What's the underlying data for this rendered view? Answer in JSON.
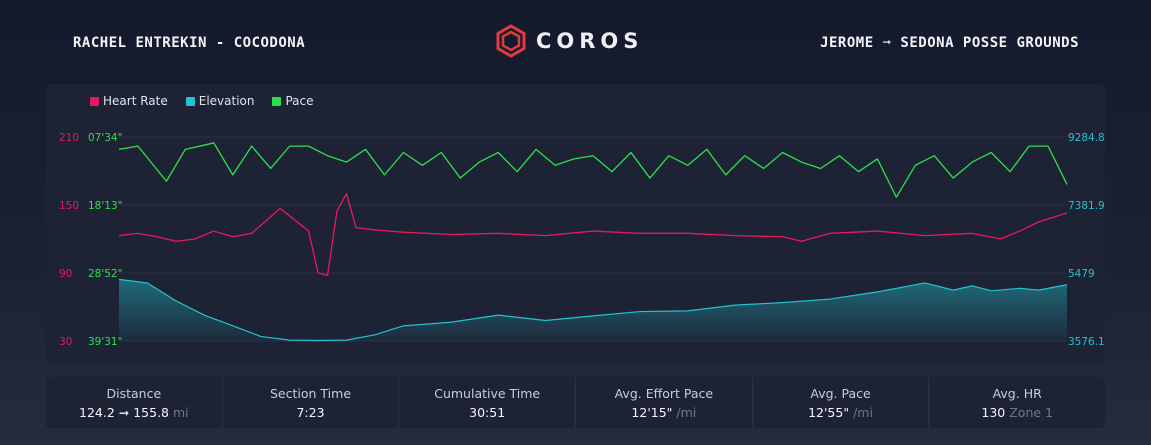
{
  "header": {
    "left_title": "RACHEL ENTREKIN - COCODONA",
    "logo_text": "COROS",
    "right_title": "JEROME ➞ SEDONA POSSE GROUNDS"
  },
  "colors": {
    "heart_rate": "#e8195a",
    "elevation": "#22c3cf",
    "pace": "#2ce04a"
  },
  "chart_data": {
    "type": "line",
    "legend": [
      "Heart Rate",
      "Elevation",
      "Pace"
    ],
    "legend_placement": "top-left",
    "y_left_hr_ticks": [
      "210",
      "150",
      "90",
      "30"
    ],
    "y_left_pace_ticks": [
      "07'34\"",
      "18'13\"",
      "28'52\"",
      "39'31\""
    ],
    "y_right_elevation_ticks": [
      "9284.8",
      "7381.9",
      "5479",
      "3576.1"
    ],
    "hr_range": [
      30,
      210
    ],
    "elevation_range": [
      3576.1,
      9284.8
    ],
    "pace_range_min_per_mi": [
      7.57,
      39.52
    ],
    "x_range": [
      0,
      1
    ],
    "series": [
      {
        "name": "Heart Rate",
        "x": [
          0,
          0.02,
          0.04,
          0.06,
          0.08,
          0.1,
          0.12,
          0.14,
          0.17,
          0.2,
          0.21,
          0.22,
          0.23,
          0.24,
          0.25,
          0.27,
          0.3,
          0.35,
          0.4,
          0.45,
          0.5,
          0.55,
          0.6,
          0.65,
          0.7,
          0.72,
          0.75,
          0.8,
          0.85,
          0.9,
          0.93,
          0.95,
          0.97,
          1
        ],
        "values": [
          123,
          125,
          122,
          118,
          120,
          127,
          122,
          125,
          147,
          127,
          90,
          88,
          145,
          160,
          130,
          128,
          126,
          124,
          125,
          123,
          127,
          125,
          125,
          123,
          122,
          118,
          125,
          127,
          123,
          125,
          120,
          127,
          135,
          143
        ]
      },
      {
        "name": "Elevation",
        "x": [
          0,
          0.03,
          0.06,
          0.09,
          0.12,
          0.15,
          0.18,
          0.21,
          0.24,
          0.27,
          0.3,
          0.35,
          0.4,
          0.45,
          0.5,
          0.55,
          0.6,
          0.65,
          0.7,
          0.75,
          0.8,
          0.85,
          0.88,
          0.9,
          0.92,
          0.95,
          0.97,
          1
        ],
        "values": [
          5300,
          5200,
          4700,
          4300,
          4000,
          3700,
          3600,
          3590,
          3600,
          3750,
          4000,
          4100,
          4300,
          4150,
          4280,
          4400,
          4420,
          4580,
          4650,
          4750,
          4950,
          5200,
          5000,
          5120,
          4980,
          5050,
          5000,
          5150
        ]
      },
      {
        "name": "Pace",
        "x": [
          0,
          0.02,
          0.05,
          0.07,
          0.1,
          0.12,
          0.14,
          0.16,
          0.18,
          0.2,
          0.22,
          0.24,
          0.26,
          0.28,
          0.3,
          0.32,
          0.34,
          0.36,
          0.38,
          0.4,
          0.42,
          0.44,
          0.46,
          0.48,
          0.5,
          0.52,
          0.54,
          0.56,
          0.58,
          0.6,
          0.62,
          0.64,
          0.66,
          0.68,
          0.7,
          0.72,
          0.74,
          0.76,
          0.78,
          0.8,
          0.82,
          0.84,
          0.86,
          0.88,
          0.9,
          0.92,
          0.94,
          0.96,
          0.98,
          1
        ],
        "values": [
          9.5,
          9.0,
          14.5,
          9.5,
          8.5,
          13.5,
          9.0,
          12.5,
          9.0,
          9.0,
          10.5,
          11.5,
          9.5,
          13.5,
          10.0,
          12.0,
          10.0,
          14.0,
          11.5,
          10.0,
          13.0,
          9.5,
          12.0,
          11.0,
          10.5,
          13.0,
          10.0,
          14.0,
          10.5,
          12.0,
          9.5,
          13.5,
          10.5,
          12.5,
          10.0,
          11.5,
          12.5,
          10.5,
          13.0,
          11.0,
          17.0,
          12.0,
          10.5,
          14.0,
          11.5,
          10.0,
          13.0,
          9.0,
          9.0,
          15.0
        ]
      }
    ]
  },
  "stats": [
    {
      "label": "Distance",
      "value": "124.2 ➞ 155.8",
      "unit": "mi"
    },
    {
      "label": "Section Time",
      "value": "7:23",
      "unit": ""
    },
    {
      "label": "Cumulative Time",
      "value": "30:51",
      "unit": ""
    },
    {
      "label": "Avg. Effort Pace",
      "value": "12'15\"",
      "unit": "/mi"
    },
    {
      "label": "Avg. Pace",
      "value": "12'55\"",
      "unit": "/mi"
    },
    {
      "label": "Avg. HR",
      "value": "130",
      "unit": "Zone 1"
    }
  ]
}
